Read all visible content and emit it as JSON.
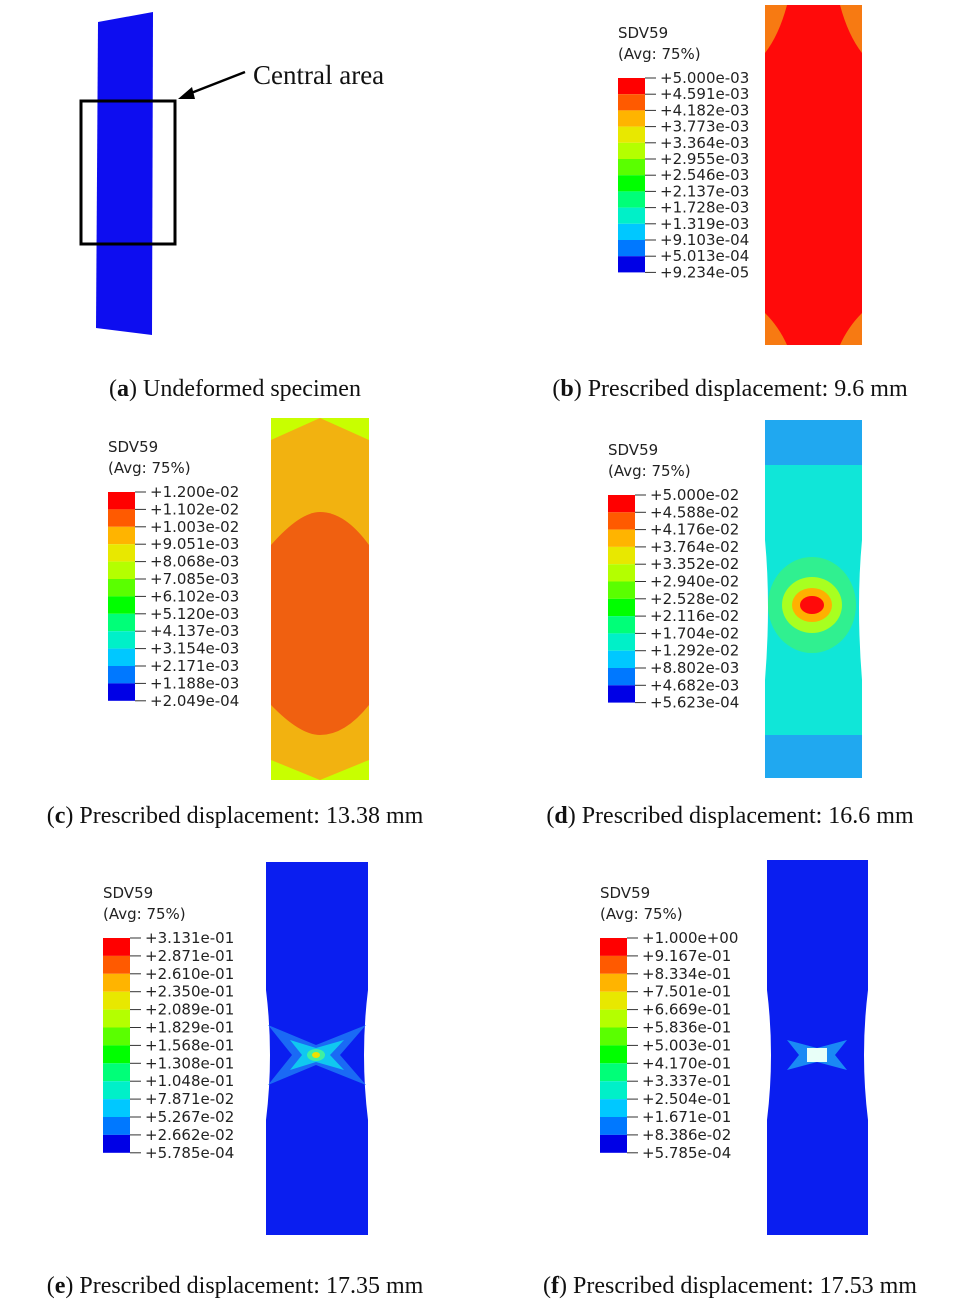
{
  "panels": [
    {
      "annotation": "Central area",
      "caption": [
        "(",
        "a",
        ") Undeformed specimen"
      ]
    },
    {
      "legend": {
        "title": "SDV59",
        "subtitle": "(Avg: 75%)",
        "labels": [
          "+5.000e-03",
          "+4.591e-03",
          "+4.182e-03",
          "+3.773e-03",
          "+3.364e-03",
          "+2.955e-03",
          "+2.546e-03",
          "+2.137e-03",
          "+1.728e-03",
          "+1.319e-03",
          "+9.103e-04",
          "+5.013e-04",
          "+9.234e-05"
        ]
      },
      "caption": [
        "(",
        "b",
        ") Prescribed displacement: 9.6 mm"
      ]
    },
    {
      "legend": {
        "title": "SDV59",
        "subtitle": "(Avg: 75%)",
        "labels": [
          "+1.200e-02",
          "+1.102e-02",
          "+1.003e-02",
          "+9.051e-03",
          "+8.068e-03",
          "+7.085e-03",
          "+6.102e-03",
          "+5.120e-03",
          "+4.137e-03",
          "+3.154e-03",
          "+2.171e-03",
          "+1.188e-03",
          "+2.049e-04"
        ]
      },
      "caption": [
        "(",
        "c",
        ") Prescribed displacement: 13.38 mm"
      ]
    },
    {
      "legend": {
        "title": "SDV59",
        "subtitle": "(Avg: 75%)",
        "labels": [
          "+5.000e-02",
          "+4.588e-02",
          "+4.176e-02",
          "+3.764e-02",
          "+3.352e-02",
          "+2.940e-02",
          "+2.528e-02",
          "+2.116e-02",
          "+1.704e-02",
          "+1.292e-02",
          "+8.802e-03",
          "+4.682e-03",
          "+5.623e-04"
        ]
      },
      "caption": [
        "(",
        "d",
        ") Prescribed displacement: 16.6 mm"
      ]
    },
    {
      "legend": {
        "title": "SDV59",
        "subtitle": "(Avg: 75%)",
        "labels": [
          "+3.131e-01",
          "+2.871e-01",
          "+2.610e-01",
          "+2.350e-01",
          "+2.089e-01",
          "+1.829e-01",
          "+1.568e-01",
          "+1.308e-01",
          "+1.048e-01",
          "+7.871e-02",
          "+5.267e-02",
          "+2.662e-02",
          "+5.785e-04"
        ]
      },
      "caption": [
        "(",
        "e",
        ") Prescribed displacement: 17.35 mm"
      ]
    },
    {
      "legend": {
        "title": "SDV59",
        "subtitle": "(Avg: 75%)",
        "labels": [
          "+1.000e+00",
          "+9.167e-01",
          "+8.334e-01",
          "+7.501e-01",
          "+6.669e-01",
          "+5.836e-01",
          "+5.003e-01",
          "+4.170e-01",
          "+3.337e-01",
          "+2.504e-01",
          "+1.671e-01",
          "+8.386e-02",
          "+5.785e-04"
        ]
      },
      "caption": [
        "(",
        "f",
        ") Prescribed displacement: 17.53 mm"
      ]
    }
  ]
}
